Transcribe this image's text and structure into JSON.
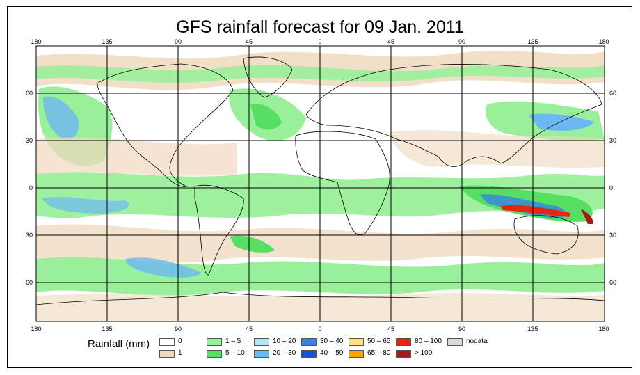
{
  "title": "GFS rainfall forecast for 09 Jan. 2011",
  "legend": {
    "title": "Rainfall (mm)",
    "items": [
      {
        "label": "0",
        "color": "#ffffff"
      },
      {
        "label": "1",
        "color": "#efd9bd"
      },
      {
        "label": "1 – 5",
        "color": "#9af09a"
      },
      {
        "label": "5 – 10",
        "color": "#55e063"
      },
      {
        "label": "10 – 20",
        "color": "#b5e6f5"
      },
      {
        "label": "20 – 30",
        "color": "#6cb8f2"
      },
      {
        "label": "30 – 40",
        "color": "#3b82e0"
      },
      {
        "label": "40 – 50",
        "color": "#1652d6"
      },
      {
        "label": "50 – 65",
        "color": "#ffe07a"
      },
      {
        "label": "65 – 80",
        "color": "#ffa200"
      },
      {
        "label": "80 – 100",
        "color": "#e8250d"
      },
      {
        "label": "> 100",
        "color": "#a4191b"
      },
      {
        "label": "nodata",
        "color": "#d9d9d9"
      }
    ]
  },
  "map": {
    "lon_ticks": [
      "180",
      "135",
      "90",
      "45",
      "0",
      "45",
      "90",
      "135",
      "180"
    ],
    "lat_ticks_left": [
      "60",
      "30",
      "0",
      "30",
      "60"
    ],
    "lat_ticks_right": [
      "60",
      "30",
      "0",
      "30",
      "60"
    ],
    "colors": {
      "ocean": "#ffffff",
      "grid": "#000000",
      "coast": "#000000"
    }
  }
}
